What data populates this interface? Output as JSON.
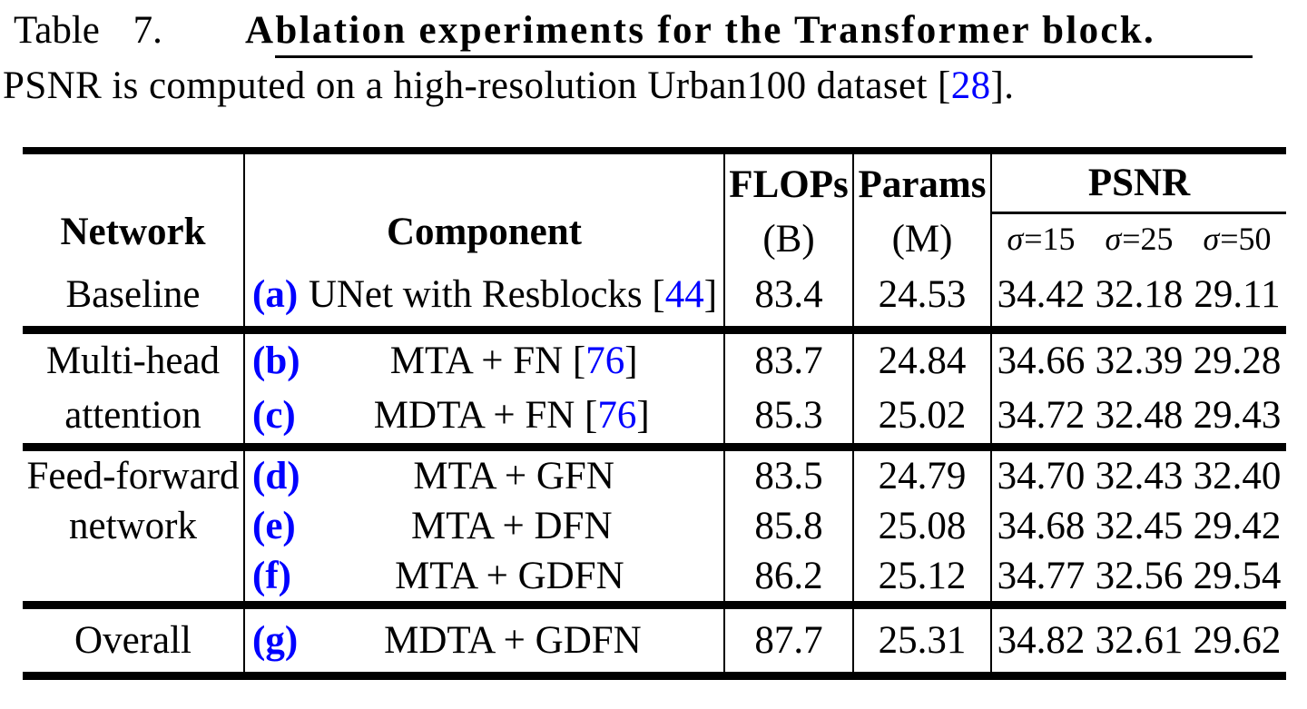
{
  "caption": {
    "label": "Table 7.",
    "title": "Ablation experiments for the Transformer block",
    "title_period": ".",
    "line2": {
      "pre": "PSNR is computed on a high-resolution Urban100 dataset [",
      "cite": "28",
      "post": "]."
    }
  },
  "table": {
    "header": {
      "network": "Network",
      "component": "Component",
      "flops_top": "FLOPs",
      "flops_bottom": "(B)",
      "params_top": "Params",
      "params_bottom": "(M)",
      "psnr": "PSNR",
      "sigma": [
        "σ=15",
        "σ=25",
        "σ=50"
      ]
    },
    "sections": [
      {
        "group": [
          "Baseline"
        ],
        "rows": [
          {
            "tag": "(a) ",
            "component": [
              {
                "t": "UNet with Resblocks ["
              },
              {
                "t": "44",
                "cite": true
              },
              {
                "t": "]"
              }
            ],
            "flops": "83.4",
            "params": "24.53",
            "psnr": [
              "34.42",
              "32.18",
              "29.11"
            ]
          }
        ]
      },
      {
        "group": [
          "Multi-head",
          "attention"
        ],
        "rows": [
          {
            "tag": "(b) ",
            "component": [
              {
                "t": "MTA + FN ["
              },
              {
                "t": "76",
                "cite": true
              },
              {
                "t": "]"
              }
            ],
            "flops": "83.7",
            "params": "24.84",
            "psnr": [
              "34.66",
              "32.39",
              "29.28"
            ]
          },
          {
            "tag": "(c) ",
            "component": [
              {
                "t": "MDTA + FN ["
              },
              {
                "t": "76",
                "cite": true
              },
              {
                "t": "]"
              }
            ],
            "flops": "85.3",
            "params": "25.02",
            "psnr": [
              "34.72",
              "32.48",
              "29.43"
            ]
          }
        ]
      },
      {
        "group": [
          "Feed-forward",
          "network"
        ],
        "rows": [
          {
            "tag": "(d) ",
            "component": [
              {
                "t": "MTA + GFN"
              }
            ],
            "flops": "83.5",
            "params": "24.79",
            "psnr": [
              "34.70",
              "32.43",
              "32.40"
            ]
          },
          {
            "tag": "(e) ",
            "component": [
              {
                "t": "MTA + DFN"
              }
            ],
            "flops": "85.8",
            "params": "25.08",
            "psnr": [
              "34.68",
              "32.45",
              "29.42"
            ]
          },
          {
            "tag": "(f) ",
            "component": [
              {
                "t": "MTA + GDFN"
              }
            ],
            "flops": "86.2",
            "params": "25.12",
            "psnr": [
              "34.77",
              "32.56",
              "29.54"
            ]
          }
        ]
      },
      {
        "group": [
          "Overall"
        ],
        "rows": [
          {
            "tag": "(g) ",
            "component": [
              {
                "t": "MDTA + GDFN"
              }
            ],
            "flops": "87.7",
            "params": "25.31",
            "psnr": [
              "34.82",
              "32.61",
              "29.62"
            ]
          }
        ]
      }
    ]
  },
  "colors": {
    "text": "#000000",
    "citation_blue": "#0000FF",
    "tag_blue": "#0000FF",
    "rule": "#000000",
    "background": "#FFFFFF"
  }
}
